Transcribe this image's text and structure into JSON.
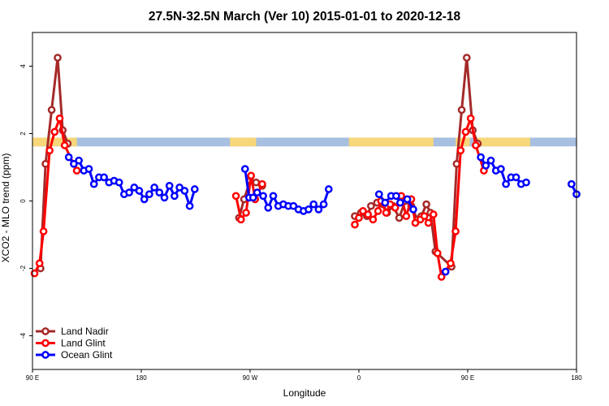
{
  "chart_data": {
    "type": "line",
    "title": "27.5N-32.5N March (Ver 10)   2015-01-01 to 2020-12-18",
    "xlabel": "Longitude",
    "ylabel": "XCO2 - MLO trend (ppm)",
    "xlim": [
      -90,
      180
    ],
    "ylim": [
      -5,
      5
    ],
    "x_ticks": [
      {
        "value": -90,
        "label": "90 E"
      },
      {
        "value": -36,
        "label": "180"
      },
      {
        "value": 18,
        "label": "90 W"
      },
      {
        "value": 72,
        "label": "0"
      },
      {
        "value": 126,
        "label": "90 E"
      },
      {
        "value": 180,
        "label": "180"
      }
    ],
    "y_ticks": [
      -4,
      -2,
      0,
      2,
      4
    ],
    "legend": {
      "position": "bottom-left"
    },
    "colors": {
      "land_nadir": "#a52a2a",
      "land_glint": "#ff0000",
      "ocean_glint": "#0000ff",
      "map_land": "#f7d77a",
      "map_ocean": "#a7bfe0"
    },
    "map_strip": {
      "ymin": 1.62,
      "ymax": 1.88,
      "land_x_ranges": [
        [
          -90,
          -68
        ],
        [
          8,
          21
        ],
        [
          67,
          109
        ],
        [
          120,
          127
        ],
        [
          130,
          157
        ]
      ]
    },
    "series": [
      {
        "name": "Land Nadir",
        "color": "#a52a2a",
        "points": [
          [
            -86,
            -2.0
          ],
          [
            -83.5,
            1.1
          ],
          [
            -80.5,
            2.7
          ],
          [
            -77.5,
            4.25
          ],
          [
            -75,
            2.1
          ],
          [
            -72.5,
            1.7
          ],
          [
            12.5,
            -0.5
          ],
          [
            15,
            0.05
          ],
          [
            18,
            0.6
          ],
          [
            21,
            0.55
          ],
          [
            24,
            0.45
          ],
          [
            70,
            -0.45
          ],
          [
            73,
            -0.35
          ],
          [
            76,
            -0.45
          ],
          [
            78,
            -0.15
          ],
          [
            81,
            -0.05
          ],
          [
            84,
            -0.1
          ],
          [
            86,
            -0.35
          ],
          [
            89,
            -0.15
          ],
          [
            92,
            -0.5
          ],
          [
            95,
            0.0
          ],
          [
            98,
            -0.15
          ],
          [
            101,
            -0.55
          ],
          [
            103,
            -0.45
          ],
          [
            105.5,
            -0.1
          ],
          [
            107.5,
            -0.35
          ],
          [
            110,
            -1.5
          ],
          [
            118,
            -1.95
          ],
          [
            120.5,
            1.1
          ],
          [
            123,
            2.7
          ],
          [
            125.5,
            4.25
          ],
          [
            128.5,
            2.1
          ],
          [
            131,
            1.7
          ]
        ]
      },
      {
        "name": "Land Glint",
        "color": "#ff0000",
        "points": [
          [
            -89,
            -2.15
          ],
          [
            -86.5,
            -1.85
          ],
          [
            -84.5,
            -0.9
          ],
          [
            -81.5,
            1.5
          ],
          [
            -79,
            2.05
          ],
          [
            -76.5,
            2.45
          ],
          [
            -74,
            1.65
          ],
          [
            -68,
            0.9
          ],
          [
            11,
            0.15
          ],
          [
            13.5,
            -0.55
          ],
          [
            16,
            -0.35
          ],
          [
            18.5,
            0.75
          ],
          [
            20.5,
            0.05
          ],
          [
            24,
            0.5
          ],
          [
            70,
            -0.7
          ],
          [
            72,
            -0.5
          ],
          [
            74,
            -0.3
          ],
          [
            76.5,
            -0.4
          ],
          [
            79,
            -0.55
          ],
          [
            81.5,
            -0.3
          ],
          [
            83,
            0.0
          ],
          [
            85.5,
            -0.35
          ],
          [
            87.5,
            -0.1
          ],
          [
            90,
            -0.2
          ],
          [
            93,
            0.15
          ],
          [
            95.5,
            -0.45
          ],
          [
            98,
            0.05
          ],
          [
            100,
            -0.65
          ],
          [
            102.5,
            -0.55
          ],
          [
            104.5,
            -0.45
          ],
          [
            106.5,
            -0.65
          ],
          [
            109,
            -0.4
          ],
          [
            111,
            -1.55
          ],
          [
            113,
            -2.25
          ],
          [
            117.5,
            -1.85
          ],
          [
            120,
            -0.9
          ],
          [
            122.5,
            1.5
          ],
          [
            125,
            2.05
          ],
          [
            127.5,
            2.45
          ],
          [
            130,
            1.65
          ],
          [
            134,
            0.9
          ]
        ]
      },
      {
        "name": "Ocean Glint",
        "color": "#0000ff",
        "points": [
          [
            -72,
            1.3
          ],
          [
            -69.5,
            1.1
          ],
          [
            -67,
            1.2
          ],
          [
            -64.5,
            0.9
          ],
          [
            -62,
            0.95
          ],
          [
            -59.5,
            0.5
          ],
          [
            -57,
            0.7
          ],
          [
            -54.5,
            0.7
          ],
          [
            -52,
            0.55
          ],
          [
            -49.5,
            0.6
          ],
          [
            -47,
            0.55
          ],
          [
            -44.5,
            0.2
          ],
          [
            -42,
            0.25
          ],
          [
            -39.5,
            0.4
          ],
          [
            -37,
            0.3
          ],
          [
            -34.5,
            0.05
          ],
          [
            -32,
            0.2
          ],
          [
            -29.5,
            0.4
          ],
          [
            -27,
            0.25
          ],
          [
            -24.5,
            0.1
          ],
          [
            -22,
            0.45
          ],
          [
            -19.5,
            0.15
          ],
          [
            -17,
            0.4
          ],
          [
            -14.5,
            0.3
          ],
          [
            -12,
            -0.15
          ],
          [
            -9.5,
            0.35
          ],
          [
            15.5,
            0.95
          ],
          [
            17.5,
            0.1
          ],
          [
            19.5,
            0.1
          ],
          [
            21.5,
            0.25
          ],
          [
            24.5,
            0.15
          ],
          [
            27,
            -0.2
          ],
          [
            29.5,
            0.15
          ],
          [
            32,
            -0.15
          ],
          [
            34.5,
            -0.1
          ],
          [
            37,
            -0.15
          ],
          [
            39.5,
            -0.15
          ],
          [
            42,
            -0.25
          ],
          [
            44.5,
            -0.3
          ],
          [
            47,
            -0.25
          ],
          [
            49.5,
            -0.1
          ],
          [
            52,
            -0.25
          ],
          [
            54.5,
            -0.1
          ],
          [
            57,
            0.35
          ],
          [
            82,
            0.2
          ],
          [
            85,
            -0.05
          ],
          [
            88,
            0.15
          ],
          [
            90.5,
            0.15
          ],
          [
            92.5,
            -0.05
          ],
          [
            96,
            0.05
          ],
          [
            99,
            -0.25
          ],
          [
            115,
            -2.1
          ],
          [
            132.5,
            1.3
          ],
          [
            135,
            1.05
          ],
          [
            137.5,
            1.2
          ],
          [
            140,
            0.9
          ],
          [
            142.5,
            0.95
          ],
          [
            145,
            0.5
          ],
          [
            147.5,
            0.7
          ],
          [
            150,
            0.7
          ],
          [
            152.5,
            0.5
          ],
          [
            155,
            0.55
          ],
          [
            177.5,
            0.5
          ],
          [
            180,
            0.2
          ]
        ]
      }
    ]
  }
}
